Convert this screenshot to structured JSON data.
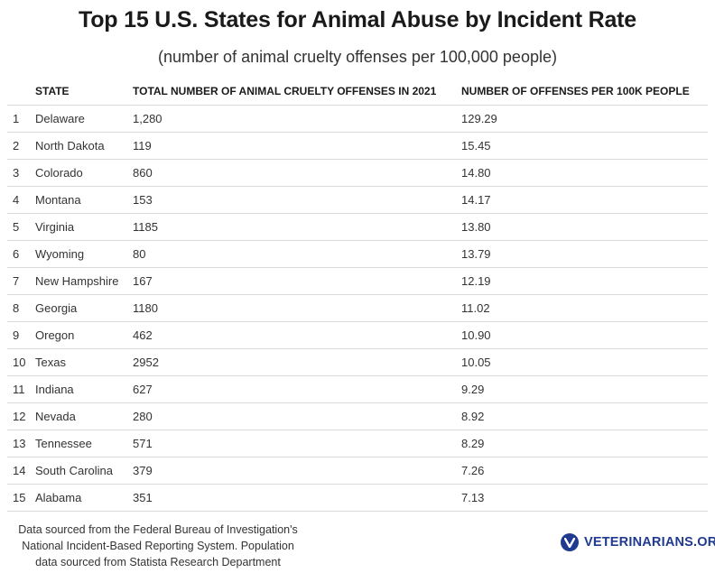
{
  "header": {
    "title": "Top 15 U.S. States for Animal Abuse by Incident Rate",
    "subtitle": "(number of animal cruelty offenses per 100,000 people)"
  },
  "chart_data": {
    "type": "table",
    "columns": [
      "",
      "STATE",
      "TOTAL NUMBER OF ANIMAL CRUELTY OFFENSES IN 2021",
      "NUMBER OF OFFENSES PER 100K PEOPLE"
    ],
    "rows": [
      {
        "rank": "1",
        "state": "Delaware",
        "total": "1,280",
        "per100k": "129.29"
      },
      {
        "rank": "2",
        "state": "North Dakota",
        "total": "119",
        "per100k": "15.45"
      },
      {
        "rank": "3",
        "state": "Colorado",
        "total": "860",
        "per100k": "14.80"
      },
      {
        "rank": "4",
        "state": "Montana",
        "total": "153",
        "per100k": "14.17"
      },
      {
        "rank": "5",
        "state": "Virginia",
        "total": "1185",
        "per100k": "13.80"
      },
      {
        "rank": "6",
        "state": "Wyoming",
        "total": "80",
        "per100k": "13.79"
      },
      {
        "rank": "7",
        "state": "New Hampshire",
        "total": "167",
        "per100k": "12.19"
      },
      {
        "rank": "8",
        "state": "Georgia",
        "total": "1180",
        "per100k": "11.02"
      },
      {
        "rank": "9",
        "state": "Oregon",
        "total": "462",
        "per100k": "10.90"
      },
      {
        "rank": "10",
        "state": "Texas",
        "total": "2952",
        "per100k": "10.05"
      },
      {
        "rank": "11",
        "state": "Indiana",
        "total": "627",
        "per100k": "9.29"
      },
      {
        "rank": "12",
        "state": "Nevada",
        "total": "280",
        "per100k": "8.92"
      },
      {
        "rank": "13",
        "state": "Tennessee",
        "total": "571",
        "per100k": "8.29"
      },
      {
        "rank": "14",
        "state": "South Carolina",
        "total": "379",
        "per100k": "7.26"
      },
      {
        "rank": "15",
        "state": "Alabama",
        "total": "351",
        "per100k": "7.13"
      }
    ]
  },
  "footer": {
    "source_line1": "Data sourced from the Federal Bureau of Investigation's",
    "source_line2": "National Incident-Based Reporting System. Population",
    "source_line3": "data sourced from Statista Research Department"
  },
  "brand": {
    "name": "VETERINARIANS.ORG",
    "icon": "veterinarians-logo-icon",
    "color": "#1f3a8f"
  }
}
